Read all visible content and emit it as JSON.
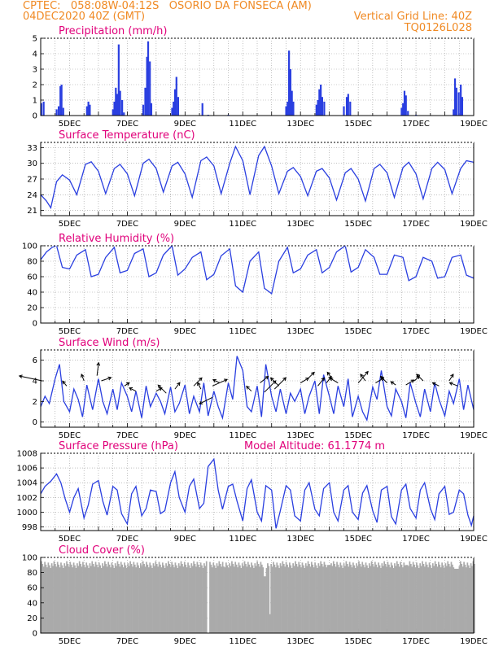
{
  "header": {
    "line1_left": "CPTEC:   058:08W-04:12S   OSORIO DA FONSECA (AM)",
    "line2_left": "04DEC2020 40Z (GMT)",
    "line2_right": "Vertical Grid Line: 40Z",
    "line3_right": "TQ0126L028"
  },
  "chart_data": [
    {
      "id": "precip",
      "type": "bar",
      "title": "Precipitation (mm/h)",
      "color": "#2a3fe0",
      "ylim": [
        0,
        5
      ],
      "yticks": [
        0,
        1,
        2,
        3,
        4,
        5
      ],
      "xticks": [
        "5DEC",
        "7DEC",
        "9DEC",
        "11DEC",
        "13DEC",
        "15DEC",
        "17DEC",
        "19DEC"
      ],
      "xrange_days": [
        4.0,
        19.0
      ],
      "bars": [
        [
          4.02,
          0.8
        ],
        [
          4.1,
          0.9
        ],
        [
          4.55,
          0.4
        ],
        [
          4.62,
          0.6
        ],
        [
          4.68,
          1.9
        ],
        [
          4.72,
          2.0
        ],
        [
          4.78,
          0.5
        ],
        [
          5.6,
          0.6
        ],
        [
          5.65,
          0.9
        ],
        [
          5.7,
          0.7
        ],
        [
          6.5,
          0.4
        ],
        [
          6.55,
          0.9
        ],
        [
          6.6,
          1.8
        ],
        [
          6.65,
          1.4
        ],
        [
          6.7,
          4.6
        ],
        [
          6.75,
          1.6
        ],
        [
          6.82,
          1.0
        ],
        [
          6.88,
          0.2
        ],
        [
          7.55,
          0.7
        ],
        [
          7.62,
          1.8
        ],
        [
          7.68,
          3.8
        ],
        [
          7.72,
          4.8
        ],
        [
          7.78,
          3.5
        ],
        [
          7.83,
          0.8
        ],
        [
          8.55,
          0.5
        ],
        [
          8.6,
          0.9
        ],
        [
          8.65,
          1.7
        ],
        [
          8.7,
          2.5
        ],
        [
          8.76,
          1.2
        ],
        [
          9.6,
          0.8
        ],
        [
          9.8,
          0.05
        ],
        [
          10.5,
          0.05
        ],
        [
          12.5,
          0.6
        ],
        [
          12.55,
          0.9
        ],
        [
          12.6,
          4.2
        ],
        [
          12.65,
          3.0
        ],
        [
          12.7,
          1.6
        ],
        [
          12.75,
          0.9
        ],
        [
          13.55,
          0.7
        ],
        [
          13.6,
          1.0
        ],
        [
          13.65,
          1.7
        ],
        [
          13.7,
          2.0
        ],
        [
          13.75,
          1.2
        ],
        [
          13.82,
          0.9
        ],
        [
          14.5,
          0.6
        ],
        [
          14.6,
          1.2
        ],
        [
          14.65,
          1.4
        ],
        [
          14.72,
          0.9
        ],
        [
          16.5,
          0.5
        ],
        [
          16.55,
          0.8
        ],
        [
          16.6,
          1.6
        ],
        [
          16.65,
          1.3
        ],
        [
          16.72,
          0.3
        ],
        [
          17.0,
          0.05
        ],
        [
          18.3,
          0.4
        ],
        [
          18.35,
          2.4
        ],
        [
          18.4,
          1.8
        ],
        [
          18.48,
          1.5
        ],
        [
          18.55,
          2.0
        ],
        [
          18.6,
          1.2
        ]
      ]
    },
    {
      "id": "temp",
      "type": "line",
      "title": "Surface Temperature (nC)",
      "color": "#2a3fe0",
      "ylim": [
        20,
        34
      ],
      "yticks": [
        21,
        24,
        27,
        30,
        33
      ],
      "xticks": [
        "5DEC",
        "7DEC",
        "9DEC",
        "11DEC",
        "13DEC",
        "15DEC",
        "17DEC",
        "19DEC"
      ],
      "xrange_days": [
        4.0,
        19.0
      ],
      "x": [
        4.0,
        4.2,
        4.35,
        4.55,
        4.75,
        5.0,
        5.25,
        5.55,
        5.75,
        6.0,
        6.25,
        6.55,
        6.75,
        7.0,
        7.25,
        7.55,
        7.75,
        8.0,
        8.25,
        8.55,
        8.75,
        9.0,
        9.25,
        9.55,
        9.75,
        10.0,
        10.25,
        10.55,
        10.75,
        11.0,
        11.25,
        11.55,
        11.75,
        12.0,
        12.25,
        12.55,
        12.75,
        13.0,
        13.25,
        13.55,
        13.75,
        14.0,
        14.25,
        14.55,
        14.75,
        15.0,
        15.25,
        15.55,
        15.75,
        16.0,
        16.25,
        16.55,
        16.75,
        17.0,
        17.25,
        17.55,
        17.75,
        18.0,
        18.25,
        18.55,
        18.75,
        19.0
      ],
      "values": [
        24.0,
        22.8,
        21.5,
        26.5,
        27.8,
        26.8,
        24.0,
        29.8,
        30.3,
        28.5,
        24.2,
        29.0,
        29.8,
        28.0,
        23.8,
        30.0,
        30.8,
        29.0,
        24.5,
        29.5,
        30.2,
        28.0,
        23.5,
        30.5,
        31.2,
        29.5,
        24.2,
        30.0,
        33.2,
        30.5,
        24.0,
        31.5,
        33.2,
        29.5,
        24.2,
        28.5,
        29.2,
        27.5,
        23.8,
        28.5,
        29.0,
        27.2,
        23.0,
        28.2,
        29.0,
        27.0,
        22.8,
        29.0,
        29.8,
        28.2,
        23.5,
        29.2,
        30.2,
        28.0,
        23.2,
        29.0,
        30.2,
        28.8,
        24.2,
        29.0,
        30.5,
        30.2
      ]
    },
    {
      "id": "rh",
      "type": "line",
      "title": "Relative Humidity (%)",
      "color": "#2a3fe0",
      "ylim": [
        0,
        100
      ],
      "yticks": [
        0,
        20,
        40,
        60,
        80,
        100
      ],
      "xticks": [
        "5DEC",
        "7DEC",
        "9DEC",
        "11DEC",
        "13DEC",
        "15DEC",
        "17DEC",
        "19DEC"
      ],
      "xrange_days": [
        4.0,
        19.0
      ],
      "x": [
        4.0,
        4.2,
        4.4,
        4.55,
        4.75,
        5.0,
        5.25,
        5.55,
        5.75,
        6.0,
        6.25,
        6.55,
        6.75,
        7.0,
        7.25,
        7.55,
        7.75,
        8.0,
        8.25,
        8.55,
        8.75,
        9.0,
        9.25,
        9.55,
        9.75,
        10.0,
        10.25,
        10.55,
        10.75,
        11.0,
        11.25,
        11.55,
        11.75,
        12.0,
        12.25,
        12.55,
        12.75,
        13.0,
        13.25,
        13.55,
        13.75,
        14.0,
        14.25,
        14.55,
        14.75,
        15.0,
        15.25,
        15.55,
        15.75,
        16.0,
        16.25,
        16.55,
        16.75,
        17.0,
        17.25,
        17.55,
        17.75,
        18.0,
        18.25,
        18.55,
        18.75,
        19.0
      ],
      "values": [
        82,
        92,
        98,
        100,
        72,
        70,
        88,
        95,
        60,
        63,
        85,
        98,
        65,
        68,
        90,
        96,
        60,
        65,
        88,
        100,
        62,
        70,
        85,
        92,
        56,
        63,
        87,
        96,
        48,
        40,
        80,
        92,
        45,
        38,
        80,
        98,
        65,
        70,
        88,
        95,
        65,
        72,
        92,
        100,
        66,
        72,
        95,
        85,
        63,
        63,
        88,
        85,
        55,
        60,
        85,
        80,
        58,
        60,
        85,
        88,
        62,
        58
      ]
    },
    {
      "id": "wind",
      "type": "line",
      "title": "Surface Wind (m/s)",
      "color": "#2a3fe0",
      "ylim": [
        -0.5,
        7
      ],
      "yticks": [
        0,
        2,
        4,
        6
      ],
      "xticks": [
        "5DEC",
        "7DEC",
        "9DEC",
        "11DEC",
        "13DEC",
        "15DEC",
        "17DEC",
        "19DEC"
      ],
      "xrange_days": [
        4.0,
        19.0
      ],
      "x": [
        4.0,
        4.15,
        4.3,
        4.5,
        4.65,
        4.8,
        5.0,
        5.15,
        5.3,
        5.45,
        5.6,
        5.8,
        6.0,
        6.15,
        6.3,
        6.5,
        6.65,
        6.8,
        7.0,
        7.15,
        7.3,
        7.5,
        7.65,
        7.8,
        8.0,
        8.15,
        8.3,
        8.5,
        8.65,
        8.8,
        9.0,
        9.15,
        9.3,
        9.5,
        9.65,
        9.8,
        10.0,
        10.15,
        10.3,
        10.5,
        10.65,
        10.8,
        11.0,
        11.15,
        11.3,
        11.5,
        11.65,
        11.8,
        12.0,
        12.15,
        12.3,
        12.5,
        12.65,
        12.8,
        13.0,
        13.15,
        13.3,
        13.5,
        13.65,
        13.8,
        14.0,
        14.15,
        14.3,
        14.5,
        14.65,
        14.8,
        15.0,
        15.15,
        15.3,
        15.5,
        15.65,
        15.8,
        16.0,
        16.15,
        16.3,
        16.5,
        16.65,
        16.8,
        17.0,
        17.15,
        17.3,
        17.5,
        17.65,
        17.8,
        18.0,
        18.15,
        18.3,
        18.5,
        18.65,
        18.8,
        19.0
      ],
      "values": [
        1.5,
        2.5,
        1.8,
        4.2,
        5.6,
        2.0,
        1.0,
        3.2,
        2.2,
        0.5,
        3.6,
        1.2,
        4.2,
        2.0,
        0.8,
        3.2,
        1.2,
        3.8,
        2.5,
        1.0,
        3.0,
        0.4,
        3.5,
        1.5,
        2.8,
        2.0,
        0.8,
        3.4,
        1.0,
        1.8,
        3.6,
        0.8,
        2.5,
        1.0,
        3.8,
        0.6,
        3.0,
        1.5,
        0.4,
        3.8,
        2.2,
        6.4,
        5.0,
        1.5,
        1.0,
        3.5,
        0.5,
        5.6,
        2.5,
        1.0,
        3.2,
        0.8,
        2.8,
        2.0,
        3.2,
        0.8,
        2.5,
        4.0,
        0.8,
        4.6,
        2.5,
        0.8,
        3.5,
        1.5,
        4.2,
        0.5,
        2.5,
        1.0,
        0.2,
        3.4,
        2.2,
        5.0,
        1.5,
        0.6,
        3.2,
        2.0,
        0.4,
        3.8,
        1.8,
        0.5,
        3.2,
        1.0,
        3.8,
        2.2,
        0.6,
        3.0,
        1.8,
        4.2,
        1.2,
        3.6,
        1.2
      ],
      "arrows": [
        [
          4.05,
          4.0,
          -28,
          -6
        ],
        [
          4.9,
          3.5,
          -5,
          -6
        ],
        [
          5.5,
          4.0,
          -3,
          -8
        ],
        [
          5.95,
          4.5,
          2,
          -16
        ],
        [
          6.1,
          4.0,
          12,
          -4
        ],
        [
          6.9,
          3.5,
          6,
          -4
        ],
        [
          7.3,
          3.0,
          -8,
          -4
        ],
        [
          8.0,
          3.0,
          7,
          -4
        ],
        [
          8.35,
          2.8,
          -10,
          -10
        ],
        [
          8.65,
          3.2,
          6,
          -8
        ],
        [
          9.3,
          3.5,
          10,
          -10
        ],
        [
          9.55,
          3.2,
          -4,
          -8
        ],
        [
          9.95,
          3.5,
          18,
          -8
        ],
        [
          9.95,
          2.4,
          -16,
          8
        ],
        [
          10.2,
          3.8,
          -8,
          -4
        ],
        [
          11.3,
          3.0,
          -6,
          -6
        ],
        [
          11.6,
          3.8,
          10,
          -8
        ],
        [
          11.75,
          2.9,
          14,
          -14
        ],
        [
          12.1,
          3.2,
          14,
          -14
        ],
        [
          12.25,
          3.5,
          -10,
          -10
        ],
        [
          13.0,
          3.8,
          10,
          -6
        ],
        [
          13.25,
          4.2,
          8,
          -8
        ],
        [
          13.6,
          3.5,
          8,
          -10
        ],
        [
          13.9,
          3.8,
          6,
          -8
        ],
        [
          14.1,
          4.2,
          -6,
          -8
        ],
        [
          14.3,
          3.8,
          -10,
          -6
        ],
        [
          15.0,
          3.8,
          12,
          -14
        ],
        [
          15.25,
          4.0,
          -6,
          -8
        ],
        [
          15.6,
          3.8,
          10,
          -6
        ],
        [
          16.0,
          3.8,
          -8,
          -8
        ],
        [
          16.3,
          3.6,
          -6,
          -4
        ],
        [
          16.65,
          3.6,
          10,
          -6
        ],
        [
          16.95,
          4.0,
          6,
          -6
        ],
        [
          17.25,
          4.0,
          -8,
          -8
        ],
        [
          17.8,
          3.5,
          -8,
          -4
        ],
        [
          18.15,
          4.0,
          5,
          -8
        ],
        [
          18.45,
          3.5,
          -10,
          -4
        ]
      ]
    },
    {
      "id": "pres",
      "type": "line",
      "title": "Surface Pressure (hPa)",
      "annotation": "Model Altitude: 61.1774 m",
      "color": "#2a3fe0",
      "ylim": [
        997.5,
        1008
      ],
      "yticks": [
        998,
        1000,
        1002,
        1004,
        1006,
        1008
      ],
      "xticks": [
        "5DEC",
        "7DEC",
        "9DEC",
        "11DEC",
        "13DEC",
        "15DEC",
        "17DEC",
        "19DEC"
      ],
      "xrange_days": [
        4.0,
        19.0
      ],
      "x": [
        4.0,
        4.15,
        4.35,
        4.55,
        4.7,
        4.85,
        5.0,
        5.15,
        5.3,
        5.5,
        5.65,
        5.8,
        6.0,
        6.15,
        6.3,
        6.5,
        6.65,
        6.8,
        7.0,
        7.15,
        7.3,
        7.5,
        7.65,
        7.8,
        8.0,
        8.15,
        8.3,
        8.5,
        8.65,
        8.8,
        9.0,
        9.15,
        9.3,
        9.5,
        9.65,
        9.8,
        10.0,
        10.15,
        10.3,
        10.5,
        10.65,
        10.8,
        11.0,
        11.15,
        11.3,
        11.5,
        11.65,
        11.8,
        12.0,
        12.15,
        12.3,
        12.5,
        12.65,
        12.8,
        13.0,
        13.15,
        13.3,
        13.5,
        13.65,
        13.8,
        14.0,
        14.15,
        14.3,
        14.5,
        14.65,
        14.8,
        15.0,
        15.15,
        15.3,
        15.5,
        15.65,
        15.8,
        16.0,
        16.15,
        16.3,
        16.5,
        16.65,
        16.8,
        17.0,
        17.15,
        17.3,
        17.5,
        17.65,
        17.8,
        18.0,
        18.15,
        18.3,
        18.5,
        18.65,
        18.8,
        18.92,
        19.0
      ],
      "values": [
        1002.5,
        1003.5,
        1004.2,
        1005.2,
        1004.0,
        1001.8,
        1000.0,
        1002.0,
        1003.2,
        999.2,
        1001.0,
        1003.8,
        1004.3,
        1001.5,
        999.6,
        1003.5,
        1003.0,
        999.8,
        998.4,
        1002.5,
        1003.5,
        999.5,
        1000.5,
        1003.0,
        1002.8,
        999.8,
        1000.2,
        1004.0,
        1005.5,
        1002.0,
        1000.0,
        1003.5,
        1004.5,
        1000.5,
        1001.2,
        1006.2,
        1007.2,
        1003.0,
        1000.4,
        1003.5,
        1003.8,
        1001.5,
        998.8,
        1003.2,
        1004.4,
        1000.0,
        998.8,
        1003.6,
        1003.0,
        997.8,
        1000.2,
        1003.6,
        1003.0,
        999.5,
        998.8,
        1003.0,
        1004.0,
        1000.4,
        999.5,
        1003.2,
        1004.0,
        1000.0,
        998.8,
        1003.0,
        1003.6,
        1000.0,
        999.0,
        1002.6,
        1003.6,
        1000.2,
        998.6,
        1003.0,
        1003.5,
        999.4,
        998.4,
        1003.0,
        1003.8,
        1000.5,
        999.2,
        1003.0,
        1004.0,
        1000.5,
        999.0,
        1002.5,
        1003.5,
        999.7,
        1000.0,
        1003.0,
        1002.5,
        999.6,
        998.2,
        999.5
      ]
    },
    {
      "id": "cloud",
      "type": "bar",
      "title": "Cloud Cover (%)",
      "color": "#aaaaaa",
      "ylim": [
        0,
        100
      ],
      "yticks": [
        0,
        20,
        40,
        60,
        80,
        100
      ],
      "xticks": [
        "5DEC",
        "7DEC",
        "9DEC",
        "11DEC",
        "13DEC",
        "15DEC",
        "17DEC",
        "19DEC"
      ],
      "xrange_days": [
        4.0,
        19.0
      ],
      "base": 95,
      "dips": [
        [
          9.75,
          9.82,
          0
        ],
        [
          11.88,
          11.94,
          25
        ],
        [
          11.7,
          11.76,
          75
        ],
        [
          18.3,
          18.45,
          85
        ],
        [
          10.3,
          10.35,
          88
        ],
        [
          13.9,
          14.0,
          90
        ],
        [
          16.6,
          16.7,
          90
        ]
      ]
    }
  ]
}
